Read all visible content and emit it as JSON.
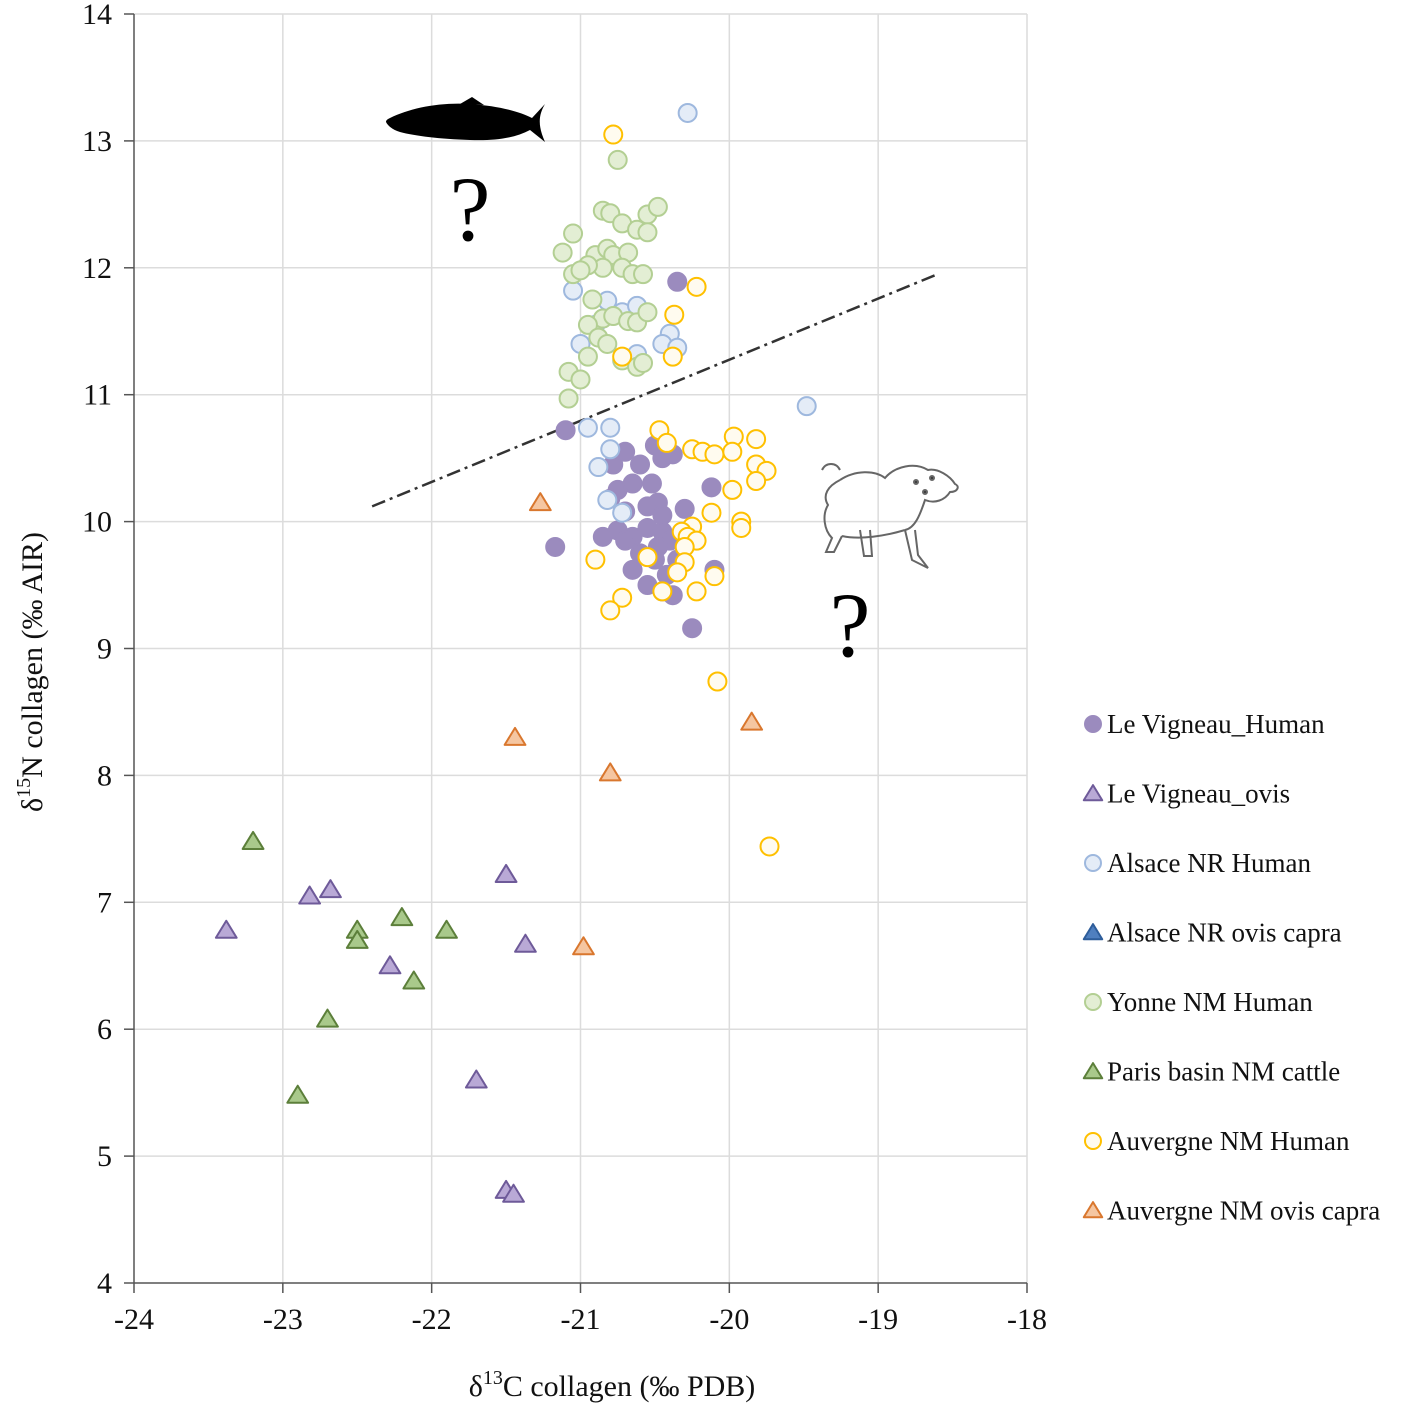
{
  "chart_data": {
    "type": "scatter",
    "xlabel_prefix": "δ",
    "xlabel_sup": "13",
    "xlabel_rest": "C collagen  (‰ PDB)",
    "ylabel_prefix": "δ",
    "ylabel_sup": "15",
    "ylabel_rest": "N collagen  (‰ AIR)",
    "xlim": [
      -24,
      -18
    ],
    "ylim": [
      4,
      14
    ],
    "xticks": [
      -24,
      -23,
      -22,
      -21,
      -20,
      -19,
      -18
    ],
    "yticks": [
      4,
      5,
      6,
      7,
      8,
      9,
      10,
      11,
      12,
      13,
      14
    ],
    "gridlines": "vertical and horizontal",
    "annotations": {
      "question_mark": "?",
      "icons": [
        "fish-silhouette",
        "sheep-drawing"
      ],
      "separator_line": {
        "style": "dash-dot",
        "from": [
          -22.4,
          10.12
        ],
        "to": [
          -18.6,
          11.95
        ]
      }
    },
    "series": [
      {
        "name": "Le Vigneau_Human",
        "marker": "circle",
        "fill": "#9B8BBE",
        "stroke": "#9B8BBE",
        "points": [
          [
            -21.1,
            10.72
          ],
          [
            -21.17,
            9.8
          ],
          [
            -20.35,
            11.89
          ],
          [
            -20.78,
            10.45
          ],
          [
            -20.7,
            10.55
          ],
          [
            -20.6,
            10.45
          ],
          [
            -20.5,
            10.6
          ],
          [
            -20.45,
            10.5
          ],
          [
            -20.38,
            10.53
          ],
          [
            -20.75,
            10.25
          ],
          [
            -20.65,
            10.3
          ],
          [
            -20.52,
            10.3
          ],
          [
            -20.48,
            10.15
          ],
          [
            -20.8,
            10.18
          ],
          [
            -20.7,
            10.08
          ],
          [
            -20.55,
            10.12
          ],
          [
            -20.45,
            10.05
          ],
          [
            -20.3,
            10.1
          ],
          [
            -20.12,
            10.27
          ],
          [
            -20.85,
            9.88
          ],
          [
            -20.75,
            9.93
          ],
          [
            -20.65,
            9.88
          ],
          [
            -20.55,
            9.95
          ],
          [
            -20.45,
            9.92
          ],
          [
            -20.4,
            9.85
          ],
          [
            -20.6,
            9.75
          ],
          [
            -20.5,
            9.7
          ],
          [
            -20.65,
            9.62
          ],
          [
            -20.42,
            9.58
          ],
          [
            -20.35,
            9.7
          ],
          [
            -20.55,
            9.5
          ],
          [
            -20.45,
            9.45
          ],
          [
            -20.38,
            9.42
          ],
          [
            -20.25,
            9.16
          ],
          [
            -20.1,
            9.62
          ],
          [
            -20.7,
            9.85
          ],
          [
            -20.48,
            9.8
          ]
        ]
      },
      {
        "name": "Le Vigneau_ovis",
        "marker": "triangle",
        "fill": "#B9A9D6",
        "stroke": "#6E5A99",
        "points": [
          [
            -23.38,
            6.78
          ],
          [
            -22.82,
            7.05
          ],
          [
            -22.68,
            7.1
          ],
          [
            -22.28,
            6.5
          ],
          [
            -21.7,
            5.6
          ],
          [
            -21.5,
            7.22
          ],
          [
            -21.37,
            6.67
          ],
          [
            -21.5,
            4.73
          ],
          [
            -21.45,
            4.7
          ]
        ]
      },
      {
        "name": "Alsace NR Human",
        "marker": "circle",
        "fill": "#E4ECF7",
        "stroke": "#9EB8DE",
        "points": [
          [
            -20.28,
            13.22
          ],
          [
            -19.48,
            10.91
          ],
          [
            -20.95,
            10.74
          ],
          [
            -20.8,
            10.74
          ],
          [
            -20.88,
            10.43
          ],
          [
            -20.8,
            10.57
          ],
          [
            -20.82,
            10.17
          ],
          [
            -20.72,
            10.07
          ],
          [
            -21.05,
            11.82
          ],
          [
            -20.82,
            11.74
          ],
          [
            -20.72,
            11.65
          ],
          [
            -20.62,
            11.7
          ],
          [
            -20.4,
            11.48
          ],
          [
            -20.45,
            11.4
          ],
          [
            -20.35,
            11.37
          ],
          [
            -20.62,
            11.32
          ],
          [
            -21.0,
            11.4
          ],
          [
            -20.9,
            11.55
          ]
        ]
      },
      {
        "name": "Alsace NR ovis capra",
        "marker": "triangle",
        "fill": "#4F7FBF",
        "stroke": "#2E5D9A",
        "points": []
      },
      {
        "name": "Yonne NM Human",
        "marker": "circle",
        "fill": "#E3EED4",
        "stroke": "#B3CF93",
        "points": [
          [
            -20.75,
            12.85
          ],
          [
            -20.85,
            12.45
          ],
          [
            -20.8,
            12.43
          ],
          [
            -20.72,
            12.35
          ],
          [
            -20.62,
            12.3
          ],
          [
            -20.55,
            12.42
          ],
          [
            -20.48,
            12.48
          ],
          [
            -20.55,
            12.28
          ],
          [
            -21.05,
            12.27
          ],
          [
            -21.12,
            12.12
          ],
          [
            -20.9,
            12.1
          ],
          [
            -20.82,
            12.15
          ],
          [
            -20.78,
            12.1
          ],
          [
            -20.68,
            12.12
          ],
          [
            -20.72,
            12.0
          ],
          [
            -20.85,
            12.0
          ],
          [
            -20.95,
            12.02
          ],
          [
            -21.05,
            11.95
          ],
          [
            -21.0,
            11.98
          ],
          [
            -20.65,
            11.95
          ],
          [
            -20.58,
            11.95
          ],
          [
            -20.92,
            11.75
          ],
          [
            -20.85,
            11.6
          ],
          [
            -20.78,
            11.62
          ],
          [
            -20.68,
            11.58
          ],
          [
            -20.62,
            11.57
          ],
          [
            -20.55,
            11.65
          ],
          [
            -20.95,
            11.55
          ],
          [
            -20.88,
            11.45
          ],
          [
            -20.82,
            11.4
          ],
          [
            -20.95,
            11.3
          ],
          [
            -20.72,
            11.27
          ],
          [
            -20.62,
            11.22
          ],
          [
            -20.58,
            11.25
          ],
          [
            -21.08,
            11.18
          ],
          [
            -21.0,
            11.12
          ],
          [
            -21.08,
            10.97
          ]
        ]
      },
      {
        "name": "Paris basin NM cattle",
        "marker": "triangle",
        "fill": "#A9C98B",
        "stroke": "#5C7F3A",
        "points": [
          [
            -23.2,
            7.48
          ],
          [
            -22.2,
            6.88
          ],
          [
            -21.9,
            6.78
          ],
          [
            -22.5,
            6.78
          ],
          [
            -22.5,
            6.7
          ],
          [
            -22.12,
            6.38
          ],
          [
            -22.7,
            6.08
          ],
          [
            -22.9,
            5.48
          ]
        ]
      },
      {
        "name": "Auvergne NM Human",
        "marker": "circle",
        "fill": "#FFFBEF",
        "stroke": "#FFC000",
        "points": [
          [
            -20.78,
            13.05
          ],
          [
            -20.22,
            11.85
          ],
          [
            -20.37,
            11.63
          ],
          [
            -20.72,
            11.3
          ],
          [
            -20.38,
            11.3
          ],
          [
            -20.47,
            10.72
          ],
          [
            -20.42,
            10.62
          ],
          [
            -20.25,
            10.57
          ],
          [
            -20.18,
            10.55
          ],
          [
            -20.1,
            10.53
          ],
          [
            -19.97,
            10.67
          ],
          [
            -19.98,
            10.55
          ],
          [
            -19.82,
            10.65
          ],
          [
            -19.82,
            10.45
          ],
          [
            -19.75,
            10.4
          ],
          [
            -19.82,
            10.32
          ],
          [
            -19.98,
            10.25
          ],
          [
            -20.12,
            10.07
          ],
          [
            -19.92,
            10.0
          ],
          [
            -19.92,
            9.95
          ],
          [
            -20.25,
            9.96
          ],
          [
            -20.32,
            9.92
          ],
          [
            -20.28,
            9.88
          ],
          [
            -20.22,
            9.85
          ],
          [
            -20.3,
            9.8
          ],
          [
            -20.55,
            9.72
          ],
          [
            -20.9,
            9.7
          ],
          [
            -20.3,
            9.68
          ],
          [
            -20.35,
            9.6
          ],
          [
            -20.1,
            9.57
          ],
          [
            -20.45,
            9.45
          ],
          [
            -20.22,
            9.45
          ],
          [
            -20.72,
            9.4
          ],
          [
            -20.8,
            9.3
          ],
          [
            -20.08,
            8.74
          ],
          [
            -19.73,
            7.44
          ]
        ]
      },
      {
        "name": "Auvergne NM ovis capra",
        "marker": "triangle",
        "fill": "#F5C6A1",
        "stroke": "#D9772E",
        "points": [
          [
            -21.27,
            10.15
          ],
          [
            -21.44,
            8.3
          ],
          [
            -20.8,
            8.02
          ],
          [
            -19.85,
            8.42
          ],
          [
            -20.98,
            6.65
          ]
        ]
      }
    ]
  }
}
